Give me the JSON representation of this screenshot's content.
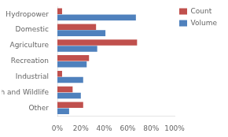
{
  "chart_data": {
    "type": "bar",
    "orientation": "horizontal",
    "categories": [
      "Hydropower",
      "Domestic",
      "Agriculture",
      "Recreation",
      "Industrial",
      "Fish and Wildlife",
      "Other"
    ],
    "series": [
      {
        "name": "Count",
        "color": "#c0504d",
        "values": [
          4,
          33,
          68,
          27,
          4,
          13,
          22
        ]
      },
      {
        "name": "Volume",
        "color": "#4f81bd",
        "values": [
          67,
          41,
          34,
          25,
          22,
          20,
          10
        ]
      }
    ],
    "xlim": [
      0,
      100
    ],
    "xticks": [
      {
        "value": 0,
        "label": "0%"
      },
      {
        "value": 20,
        "label": "20%"
      },
      {
        "value": 40,
        "label": "40%"
      },
      {
        "value": 60,
        "label": "60%"
      },
      {
        "value": 80,
        "label": "80%"
      },
      {
        "value": 100,
        "label": "100%"
      }
    ],
    "grid": false,
    "legend": "right"
  }
}
